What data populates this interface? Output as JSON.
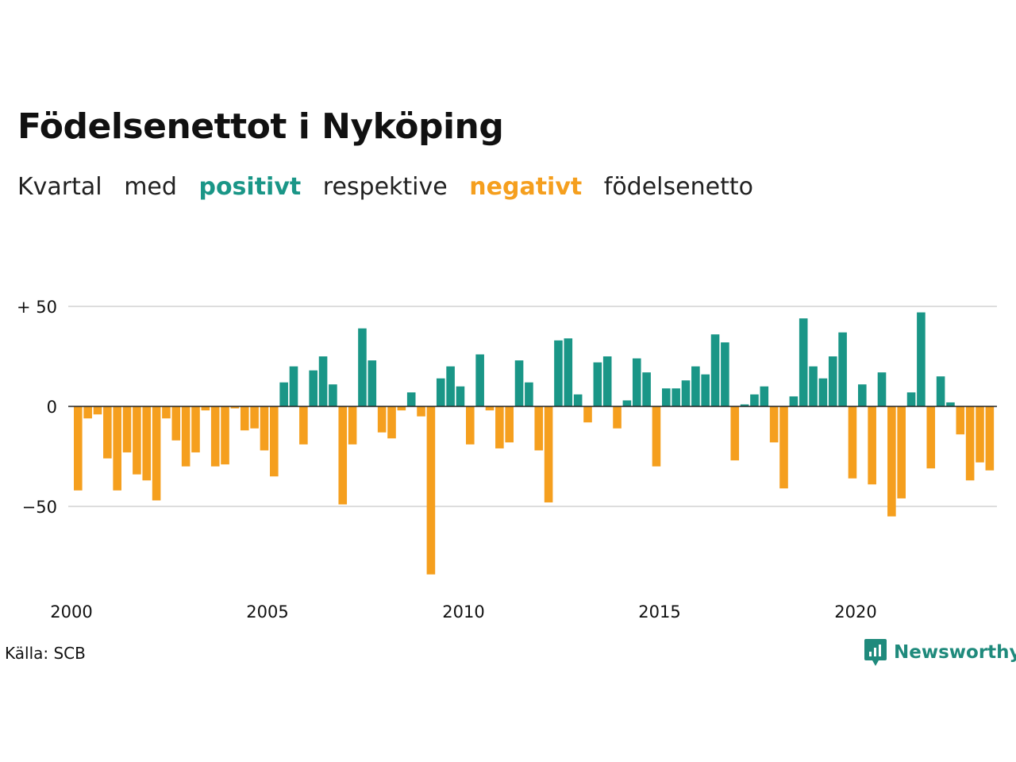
{
  "header": {
    "title": "Födelsenettot i Nyköping",
    "subtitle": {
      "part1": "Kvartal",
      "part2": "med",
      "positive": "positivt",
      "part3": "respektive",
      "negative": "negativt",
      "part4": "födelsenetto"
    }
  },
  "colors": {
    "positive": "#1a9687",
    "negative": "#f59f1e",
    "grid": "#dddddd",
    "brand": "#1f8a7c"
  },
  "footer": {
    "source": "Källa: SCB",
    "brand_name": "Newsworthy",
    "brand_icon": "newsworthy-logo-icon"
  },
  "chart_data": {
    "type": "bar",
    "title": "Födelsenettot i Nyköping",
    "xlabel": "",
    "ylabel": "",
    "ylim": [
      -84,
      50
    ],
    "grid": true,
    "y_ticks": [
      50,
      0,
      -50
    ],
    "y_tick_labels": [
      "+ 50",
      "0",
      "−50"
    ],
    "x_ticks": [
      2000,
      2005,
      2010,
      2015,
      2020
    ],
    "x_tick_labels": [
      "2000",
      "2005",
      "2010",
      "2015",
      "2020"
    ],
    "start_year": 2000,
    "quarters_per_year": 4,
    "values": [
      -42,
      -6,
      -4,
      -26,
      -42,
      -23,
      -34,
      -37,
      -47,
      -6,
      -17,
      -30,
      -23,
      -2,
      -30,
      -29,
      -1,
      -12,
      -11,
      -22,
      -35,
      12,
      20,
      -19,
      18,
      25,
      11,
      -49,
      -19,
      39,
      23,
      -13,
      -16,
      -2,
      7,
      -5,
      -84,
      14,
      20,
      10,
      -19,
      26,
      -2,
      -21,
      -18,
      23,
      12,
      -22,
      -48,
      33,
      34,
      6,
      -8,
      22,
      25,
      -11,
      3,
      24,
      17,
      -30,
      9,
      9,
      13,
      20,
      16,
      36,
      32,
      -27,
      1,
      6,
      10,
      -18,
      -41,
      5,
      44,
      20,
      14,
      25,
      37,
      -36,
      11,
      -39,
      17,
      -55,
      -46,
      7,
      47,
      -31,
      15,
      2,
      -14,
      -37,
      -28,
      -32
    ]
  }
}
